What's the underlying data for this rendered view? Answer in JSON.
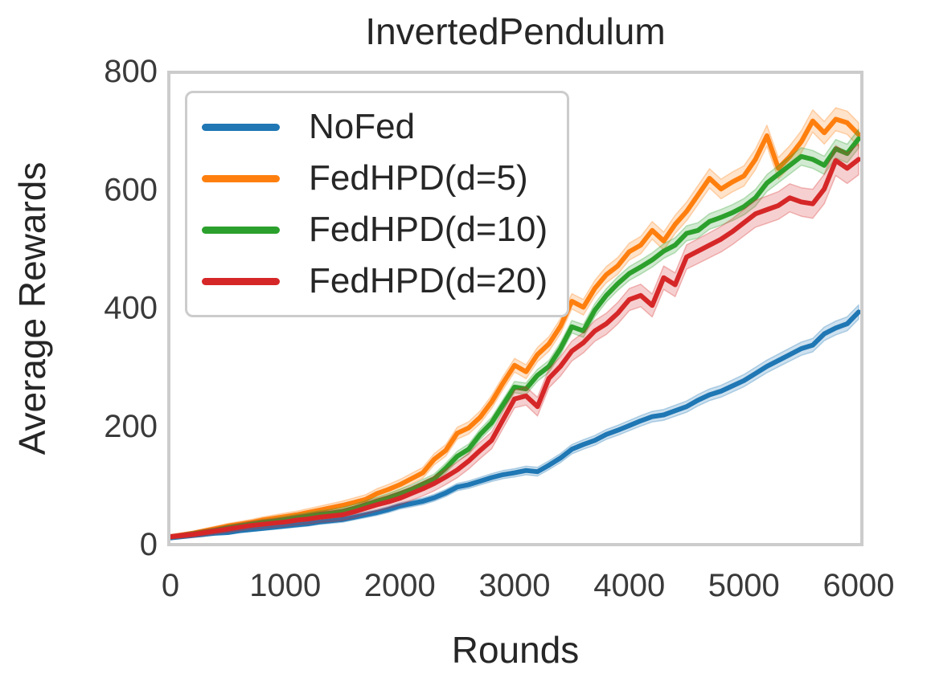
{
  "chart_data": {
    "type": "line",
    "title": "InvertedPendulum",
    "xlabel": "Rounds",
    "ylabel": "Average Rewards",
    "xlim": [
      0,
      6000
    ],
    "ylim": [
      0,
      800
    ],
    "x_ticks": [
      0,
      1000,
      2000,
      3000,
      4000,
      5000,
      6000
    ],
    "y_ticks": [
      0,
      200,
      400,
      600,
      800
    ],
    "x_step": 100,
    "grid": false,
    "legend_position": "upper left",
    "band_style": "shaded confidence band per series",
    "series": [
      {
        "name": "NoFed",
        "color": "#1f77b4",
        "band_halfwidth": [
          2,
          12
        ],
        "values": [
          10,
          12,
          14,
          16,
          18,
          19,
          22,
          24,
          26,
          28,
          30,
          32,
          34,
          37,
          39,
          41,
          45,
          49,
          53,
          58,
          64,
          68,
          72,
          78,
          86,
          96,
          100,
          106,
          112,
          117,
          120,
          124,
          122,
          133,
          145,
          160,
          168,
          175,
          185,
          192,
          200,
          208,
          215,
          218,
          225,
          232,
          243,
          252,
          258,
          267,
          276,
          288,
          300,
          310,
          320,
          330,
          336,
          355,
          365,
          372,
          392
        ]
      },
      {
        "name": "FedHPD(d=5)",
        "color": "#ff7f0e",
        "band_halfwidth": [
          3,
          20
        ],
        "values": [
          12,
          15,
          18,
          22,
          26,
          30,
          33,
          36,
          40,
          43,
          46,
          49,
          53,
          57,
          61,
          65,
          70,
          75,
          85,
          92,
          100,
          110,
          120,
          143,
          158,
          187,
          196,
          214,
          240,
          272,
          302,
          291,
          320,
          338,
          368,
          410,
          400,
          432,
          455,
          470,
          494,
          505,
          530,
          512,
          540,
          562,
          590,
          618,
          600,
          612,
          622,
          650,
          690,
          635,
          655,
          680,
          715,
          695,
          718,
          712,
          692
        ]
      },
      {
        "name": "FedHPD(d=10)",
        "color": "#2ca02c",
        "band_halfwidth": [
          3,
          16
        ],
        "values": [
          12,
          14,
          17,
          20,
          23,
          27,
          30,
          33,
          36,
          38,
          41,
          44,
          47,
          50,
          52,
          55,
          60,
          66,
          72,
          78,
          85,
          92,
          101,
          110,
          128,
          148,
          160,
          185,
          205,
          235,
          265,
          262,
          285,
          300,
          330,
          367,
          360,
          395,
          420,
          440,
          457,
          468,
          480,
          495,
          505,
          525,
          530,
          545,
          552,
          560,
          570,
          585,
          610,
          625,
          640,
          655,
          650,
          640,
          668,
          660,
          685
        ]
      },
      {
        "name": "FedHPD(d=20)",
        "color": "#d62728",
        "band_halfwidth": [
          4,
          26
        ],
        "values": [
          12,
          14,
          16,
          19,
          22,
          25,
          28,
          31,
          33,
          35,
          37,
          40,
          42,
          45,
          47,
          49,
          54,
          60,
          66,
          71,
          77,
          85,
          93,
          102,
          113,
          125,
          140,
          158,
          175,
          210,
          245,
          250,
          232,
          280,
          300,
          326,
          340,
          360,
          372,
          390,
          413,
          420,
          403,
          450,
          438,
          485,
          495,
          505,
          515,
          528,
          543,
          558,
          565,
          572,
          585,
          578,
          575,
          600,
          648,
          635,
          650
        ]
      }
    ]
  },
  "colors": {
    "spine": "#cccccc",
    "text": "#262626",
    "tick_text": "#3a3a3a",
    "background": "#ffffff",
    "band_opacity": 0.22
  }
}
